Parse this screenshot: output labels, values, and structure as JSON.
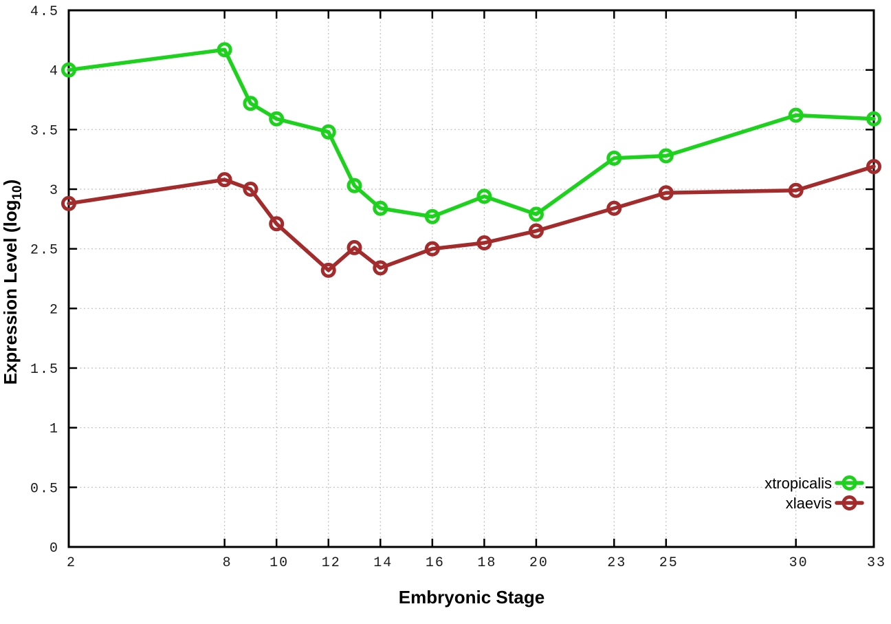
{
  "chart_data": {
    "type": "line",
    "title": "",
    "xlabel": "Embryonic Stage",
    "ylabel": {
      "prefix": "Expression Level (log",
      "sub": "10",
      "suffix": ")"
    },
    "x": [
      2,
      8,
      9,
      10,
      12,
      13,
      14,
      16,
      18,
      20,
      23,
      25,
      30,
      33
    ],
    "xlim": [
      2,
      33
    ],
    "ylim": [
      0,
      4.5
    ],
    "xticks": [
      2,
      8,
      10,
      12,
      14,
      16,
      18,
      20,
      23,
      25,
      30,
      33
    ],
    "yticks": [
      0,
      0.5,
      1,
      1.5,
      2,
      2.5,
      3,
      3.5,
      4,
      4.5
    ],
    "grid": true,
    "legend_position": "bottom-right",
    "colors": {
      "axis": "#000000",
      "grid": "#bdbdbd"
    },
    "series": [
      {
        "name": "xtropicalis",
        "color": "#1cd21c",
        "marker": "open-circle",
        "values": [
          4.0,
          4.17,
          3.72,
          3.59,
          3.48,
          3.03,
          2.84,
          2.77,
          2.94,
          2.79,
          3.26,
          3.28,
          3.62,
          3.59
        ]
      },
      {
        "name": "xlaevis",
        "color": "#a32b2b",
        "marker": "open-circle",
        "values": [
          2.88,
          3.08,
          3.0,
          2.71,
          2.32,
          2.51,
          2.34,
          2.5,
          2.55,
          2.65,
          2.84,
          2.97,
          2.99,
          3.19
        ]
      }
    ]
  }
}
